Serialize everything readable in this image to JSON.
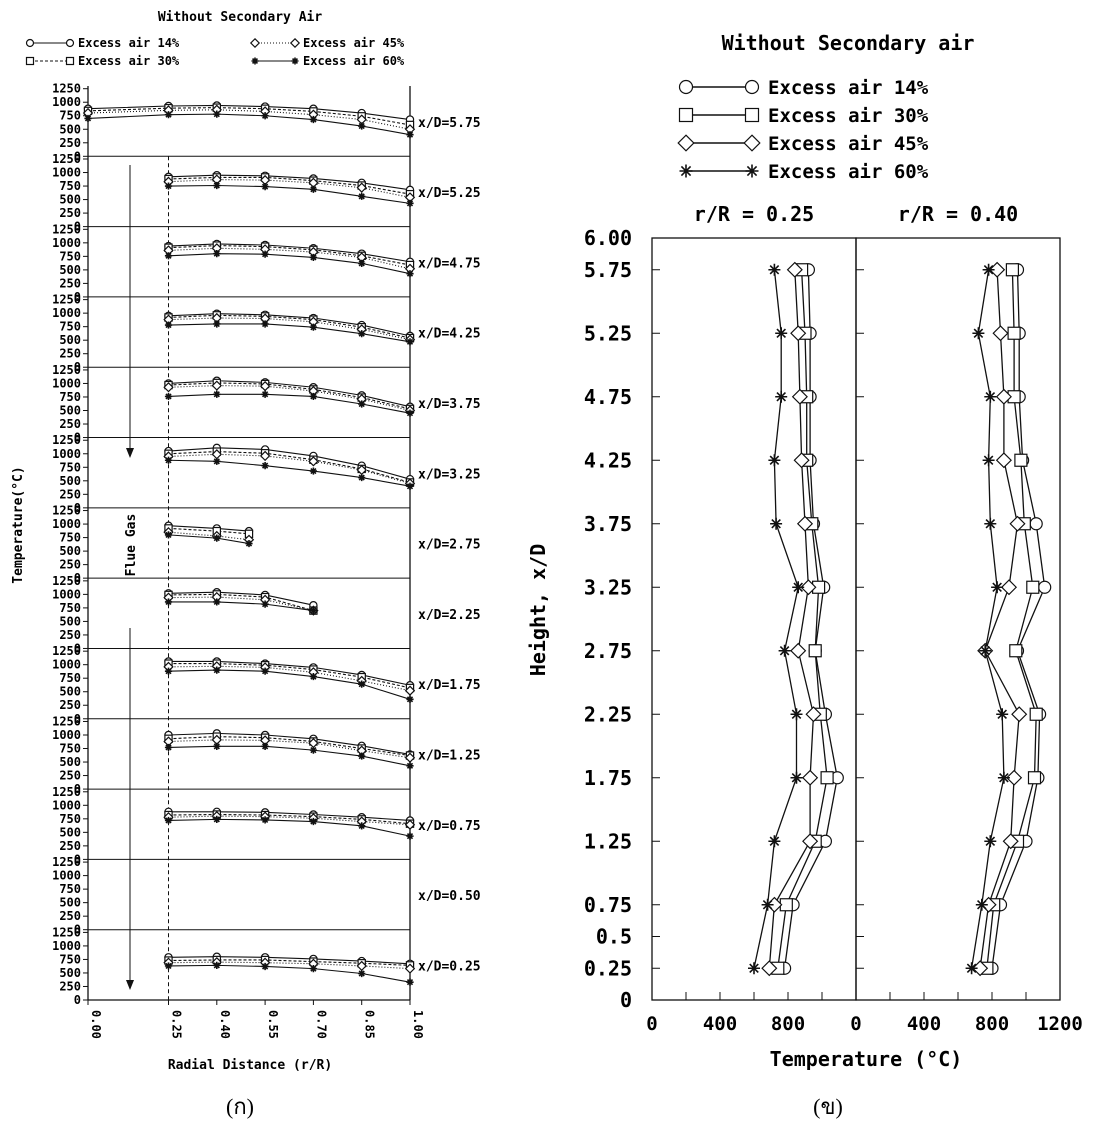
{
  "panel_a": {
    "title": "Without Secondary Air",
    "caption": "(ก)",
    "legend": [
      {
        "label": "Excess air 14%",
        "marker": "circle",
        "dash": ""
      },
      {
        "label": "Excess air 30%",
        "marker": "square",
        "dash": "3,2"
      },
      {
        "label": "Excess air 45%",
        "marker": "diamond",
        "dash": "1,2"
      },
      {
        "label": "Excess air 60%",
        "marker": "star",
        "dash": ""
      }
    ],
    "ylabel": "Temperature(°C)",
    "xlabel": "Radial Distance (r/R)",
    "flow_label": "Flue Gas",
    "y_ticks": [
      0,
      250,
      500,
      750,
      1000,
      1250
    ],
    "x_ticks": [
      "0.00",
      "0.25",
      "0.40",
      "0.55",
      "0.70",
      "0.85",
      "1.00"
    ]
  },
  "panel_b": {
    "title": "Without Secondary air",
    "caption": "(ข)",
    "legend": [
      {
        "label": "Excess air 14%",
        "marker": "circle"
      },
      {
        "label": "Excess air 30%",
        "marker": "square"
      },
      {
        "label": "Excess air 45%",
        "marker": "diamond"
      },
      {
        "label": "Excess air 60%",
        "marker": "star"
      }
    ],
    "ylabel": "Height, x/D",
    "xlabel": "Temperature (°C)",
    "y_tick_labels": [
      "0",
      "0.25",
      "0.5",
      "0.75",
      "1.25",
      "1.75",
      "2.25",
      "2.75",
      "3.25",
      "3.75",
      "4.25",
      "4.75",
      "5.25",
      "5.75",
      "6.00"
    ],
    "x_ticks_left": [
      "0",
      "400",
      "800"
    ],
    "x_ticks_right": [
      "0",
      "400",
      "800",
      "1200"
    ]
  },
  "chart_data": [
    {
      "type": "line",
      "title": "Without Secondary Air",
      "xlabel": "Radial Distance (r/R)",
      "ylabel": "Temperature(°C)",
      "ylim": [
        0,
        1250
      ],
      "xlim": [
        0,
        1
      ],
      "legend_position": "top",
      "series_names": [
        "Excess air 14%",
        "Excess air 30%",
        "Excess air 45%",
        "Excess air 60%"
      ],
      "panels": [
        {
          "label": "x/D=5.75",
          "x": [
            0,
            0.25,
            0.4,
            0.55,
            0.7,
            0.85,
            1.0
          ],
          "series": [
            [
              880,
              930,
              940,
              920,
              880,
              800,
              680
            ],
            [
              840,
              890,
              900,
              880,
              830,
              740,
              580
            ],
            [
              800,
              850,
              860,
              830,
              770,
              680,
              500
            ],
            [
              700,
              770,
              780,
              750,
              680,
              560,
              400
            ]
          ]
        },
        {
          "label": "x/D=5.25",
          "x": [
            0.25,
            0.4,
            0.55,
            0.7,
            0.85,
            1.0
          ],
          "series": [
            [
              920,
              950,
              940,
              890,
              810,
              680
            ],
            [
              880,
              910,
              910,
              850,
              760,
              600
            ],
            [
              830,
              870,
              860,
              810,
              720,
              540
            ],
            [
              750,
              760,
              740,
              690,
              560,
              430
            ]
          ]
        },
        {
          "label": "x/D=4.75",
          "x": [
            0.25,
            0.4,
            0.55,
            0.7,
            0.85,
            1.0
          ],
          "series": [
            [
              940,
              980,
              960,
              900,
              800,
              650
            ],
            [
              910,
              950,
              930,
              870,
              760,
              590
            ],
            [
              860,
              900,
              880,
              830,
              730,
              520
            ],
            [
              760,
              800,
              790,
              730,
              620,
              430
            ]
          ]
        },
        {
          "label": "x/D=4.25",
          "x": [
            0.25,
            0.4,
            0.55,
            0.7,
            0.85,
            1.0
          ],
          "series": [
            [
              950,
              990,
              970,
              910,
              780,
              580
            ],
            [
              920,
              960,
              940,
              880,
              740,
              540
            ],
            [
              880,
              910,
              900,
              840,
              700,
              510
            ],
            [
              780,
              800,
              800,
              740,
              620,
              470
            ]
          ]
        },
        {
          "label": "x/D=3.75",
          "x": [
            0.25,
            0.4,
            0.55,
            0.7,
            0.85,
            1.0
          ],
          "series": [
            [
              1000,
              1050,
              1020,
              930,
              780,
              570
            ],
            [
              970,
              1010,
              990,
              890,
              740,
              530
            ],
            [
              930,
              960,
              950,
              860,
              710,
              500
            ],
            [
              760,
              800,
              800,
              760,
              620,
              450
            ]
          ]
        },
        {
          "label": "x/D=3.25",
          "x": [
            0.25,
            0.4,
            0.55,
            0.7,
            0.85,
            1.0
          ],
          "series": [
            [
              1050,
              1110,
              1080,
              960,
              780,
              530
            ],
            [
              1000,
              1040,
              1010,
              890,
              720,
              470
            ],
            [
              950,
              990,
              960,
              860,
              700,
              450
            ],
            [
              880,
              860,
              780,
              680,
              560,
              400
            ]
          ]
        },
        {
          "label": "x/D=2.75",
          "x": [
            0.25,
            0.4,
            0.5
          ],
          "series": [
            [
              970,
              920,
              870
            ],
            [
              920,
              870,
              820
            ],
            [
              850,
              780,
              710
            ],
            [
              800,
              740,
              640
            ]
          ]
        },
        {
          "label": "x/D=2.25",
          "x": [
            0.25,
            0.4,
            0.55,
            0.7
          ],
          "series": [
            [
              1020,
              1040,
              990,
              800
            ],
            [
              990,
              1000,
              950,
              700
            ],
            [
              940,
              950,
              900,
              700
            ],
            [
              860,
              860,
              820,
              700
            ]
          ]
        },
        {
          "label": "x/D=1.75",
          "x": [
            0.25,
            0.4,
            0.55,
            0.7,
            0.85,
            1.0
          ],
          "series": [
            [
              1060,
              1060,
              1020,
              950,
              810,
              620
            ],
            [
              1020,
              1020,
              990,
              910,
              770,
              570
            ],
            [
              960,
              970,
              950,
              860,
              700,
              520
            ],
            [
              880,
              900,
              880,
              780,
              640,
              360
            ]
          ]
        },
        {
          "label": "x/D=1.25",
          "x": [
            0.25,
            0.4,
            0.55,
            0.7,
            0.85,
            1.0
          ],
          "series": [
            [
              1000,
              1030,
              1000,
              930,
              800,
              640
            ],
            [
              930,
              970,
              950,
              880,
              750,
              620
            ],
            [
              880,
              910,
              900,
              850,
              710,
              580
            ],
            [
              770,
              790,
              790,
              720,
              610,
              430
            ]
          ]
        },
        {
          "label": "x/D=0.75",
          "x": [
            0.25,
            0.4,
            0.55,
            0.7,
            0.85,
            1.0
          ],
          "series": [
            [
              880,
              880,
              870,
              830,
              780,
              720
            ],
            [
              820,
              830,
              820,
              790,
              740,
              660
            ],
            [
              780,
              800,
              790,
              760,
              700,
              640
            ],
            [
              720,
              740,
              730,
              700,
              620,
              430
            ]
          ]
        },
        {
          "label": "x/D=0.50",
          "x": [],
          "series": [
            [],
            [],
            [],
            []
          ]
        },
        {
          "label": "x/D=0.25",
          "x": [
            0.25,
            0.4,
            0.55,
            0.7,
            0.85,
            1.0
          ],
          "series": [
            [
              790,
              800,
              790,
              760,
              720,
              670
            ],
            [
              730,
              740,
              740,
              710,
              680,
              640
            ],
            [
              690,
              700,
              690,
              670,
              630,
              580
            ],
            [
              630,
              640,
              620,
              580,
              490,
              330
            ]
          ]
        }
      ]
    },
    {
      "type": "line",
      "title": "Without Secondary air",
      "xlabel": "Temperature (°C)",
      "ylabel": "Height, x/D",
      "ylim": [
        0,
        6
      ],
      "xlim": [
        0,
        1200
      ],
      "legend_position": "top",
      "y": [
        0.25,
        0.75,
        1.25,
        1.75,
        2.25,
        2.75,
        3.25,
        3.75,
        4.25,
        4.75,
        5.25,
        5.75
      ],
      "panels": [
        {
          "label": "r/R = 0.25",
          "series": [
            {
              "name": "Excess air 14%",
              "x": [
                780,
                830,
                1020,
                1090,
                1020,
                960,
                1010,
                950,
                930,
                930,
                930,
                920
              ]
            },
            {
              "name": "Excess air 30%",
              "x": [
                740,
                790,
                960,
                1030,
                990,
                960,
                980,
                940,
                910,
                910,
                900,
                880
              ]
            },
            {
              "name": "Excess air 45%",
              "x": [
                690,
                720,
                930,
                930,
                950,
                860,
                920,
                900,
                880,
                870,
                860,
                840
              ]
            },
            {
              "name": "Excess air 60%",
              "x": [
                600,
                680,
                720,
                850,
                850,
                780,
                860,
                730,
                720,
                760,
                760,
                720
              ]
            }
          ]
        },
        {
          "label": "r/R = 0.40",
          "series": [
            {
              "name": "Excess air 14%",
              "x": [
                800,
                850,
                1000,
                1070,
                1080,
                950,
                1110,
                1060,
                980,
                960,
                960,
                950
              ]
            },
            {
              "name": "Excess air 30%",
              "x": [
                770,
                810,
                950,
                1050,
                1060,
                940,
                1040,
                990,
                970,
                930,
                930,
                920
              ]
            },
            {
              "name": "Excess air 45%",
              "x": [
                730,
                780,
                910,
                930,
                960,
                760,
                900,
                950,
                870,
                870,
                850,
                830
              ]
            },
            {
              "name": "Excess air 60%",
              "x": [
                680,
                740,
                790,
                870,
                860,
                760,
                830,
                790,
                780,
                790,
                720,
                780
              ]
            }
          ]
        }
      ]
    }
  ]
}
